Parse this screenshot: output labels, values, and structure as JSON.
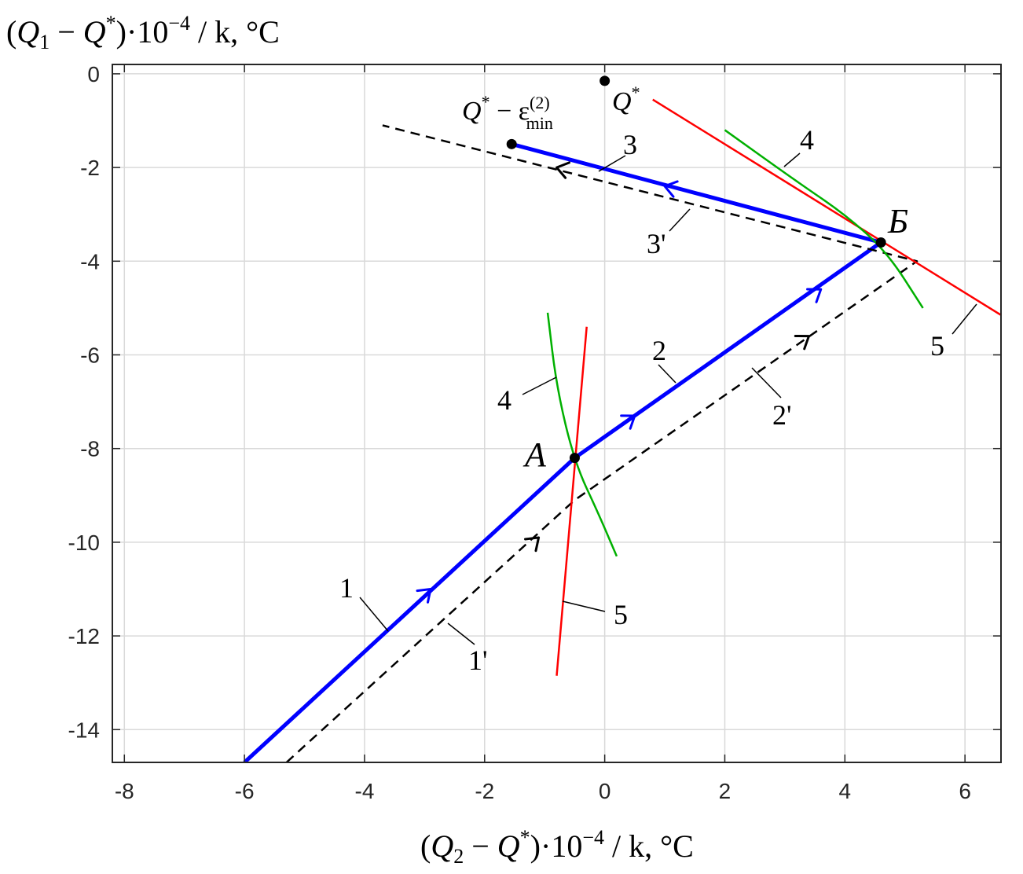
{
  "chart_data": {
    "type": "line",
    "title": "",
    "xlabel_parts": {
      "open": "(",
      "q": "Q",
      "sub": "2",
      "minus": " − ",
      "q2": "Q",
      "sup": "*",
      "rest": ")·10",
      "exp": "−4",
      "tail": " / k,  °C"
    },
    "ylabel_parts": {
      "open": "(",
      "q": "Q",
      "sub": "1",
      "minus": " − ",
      "q2": "Q",
      "sup": "*",
      "rest": ")·10",
      "exp": "−4",
      "tail": " / k,  °C"
    },
    "xlim": [
      -8.2,
      6.6
    ],
    "ylim": [
      -14.7,
      0.2
    ],
    "xticks": [
      -8,
      -6,
      -4,
      -2,
      0,
      2,
      4,
      6
    ],
    "yticks": [
      0,
      -2,
      -4,
      -6,
      -8,
      -10,
      -12,
      -14
    ],
    "xtick_labels": [
      "-8",
      "-6",
      "-4",
      "-2",
      "0",
      "2",
      "4",
      "6"
    ],
    "ytick_labels": [
      "0",
      "-2",
      "-4",
      "-6",
      "-8",
      "-10",
      "-12",
      "-14"
    ],
    "grid": true,
    "colors": {
      "path": "#0000ff",
      "dashed": "#000000",
      "red": "#ff0000",
      "green": "#00b000"
    },
    "series": [
      {
        "kind": "solid-path",
        "color": "blue",
        "points": [
          [
            -6.0,
            -14.7
          ],
          [
            -0.5,
            -8.2
          ],
          [
            4.6,
            -3.6
          ],
          [
            -1.55,
            -1.5
          ]
        ],
        "arrows": [
          [
            -2.9,
            -11.0,
            1
          ],
          [
            0.5,
            -7.3,
            2
          ],
          [
            3.6,
            -4.6,
            2
          ],
          [
            1.0,
            -2.4,
            3
          ]
        ]
      },
      {
        "kind": "dashed-path",
        "color": "black",
        "points": [
          [
            -5.3,
            -14.7
          ],
          [
            -0.5,
            -9.1
          ],
          [
            5.2,
            -4.0
          ],
          [
            -3.7,
            -1.1
          ]
        ],
        "arrows": [
          [
            -1.1,
            -9.9,
            1
          ],
          [
            3.4,
            -5.6,
            2
          ],
          [
            -0.8,
            -2.0,
            3
          ]
        ]
      },
      {
        "kind": "red-line",
        "label": "5",
        "points": [
          [
            -0.8,
            -12.85
          ],
          [
            -0.3,
            -5.4
          ]
        ]
      },
      {
        "kind": "red-line",
        "label": "5",
        "points": [
          [
            0.8,
            -0.55
          ],
          [
            6.6,
            -5.15
          ]
        ]
      },
      {
        "kind": "green-curve",
        "label": "4",
        "points": [
          [
            -0.95,
            -5.1
          ],
          [
            -0.8,
            -6.7
          ],
          [
            -0.5,
            -8.3
          ],
          [
            -0.1,
            -9.4
          ],
          [
            0.2,
            -10.3
          ]
        ]
      },
      {
        "kind": "green-curve",
        "label": "4",
        "points": [
          [
            2.0,
            -1.2
          ],
          [
            3.2,
            -2.3
          ],
          [
            4.0,
            -3.0
          ],
          [
            4.7,
            -3.8
          ],
          [
            5.3,
            -5.0
          ]
        ]
      }
    ],
    "points": [
      {
        "name": "A",
        "x": -0.5,
        "y": -8.2
      },
      {
        "name": "Б",
        "x": 4.6,
        "y": -3.6
      },
      {
        "name": "Q*",
        "x": 0.0,
        "y": -0.15
      },
      {
        "name": "Q*−ε",
        "x": -1.55,
        "y": -1.5
      }
    ],
    "annotations": {
      "one": "1",
      "one_prime": "1'",
      "two": "2",
      "two_prime": "2'",
      "three": "3",
      "three_prime": "3'",
      "four_a": "4",
      "four_b": "4",
      "five_a": "5",
      "five_b": "5",
      "point_a": "A",
      "point_b": "Б",
      "qstar": {
        "q": "Q",
        "sup": "*"
      },
      "qeps": {
        "q": "Q",
        "sup": "*",
        "minus": " − ε",
        "subtop": "(2)",
        "sub": "min"
      }
    }
  }
}
